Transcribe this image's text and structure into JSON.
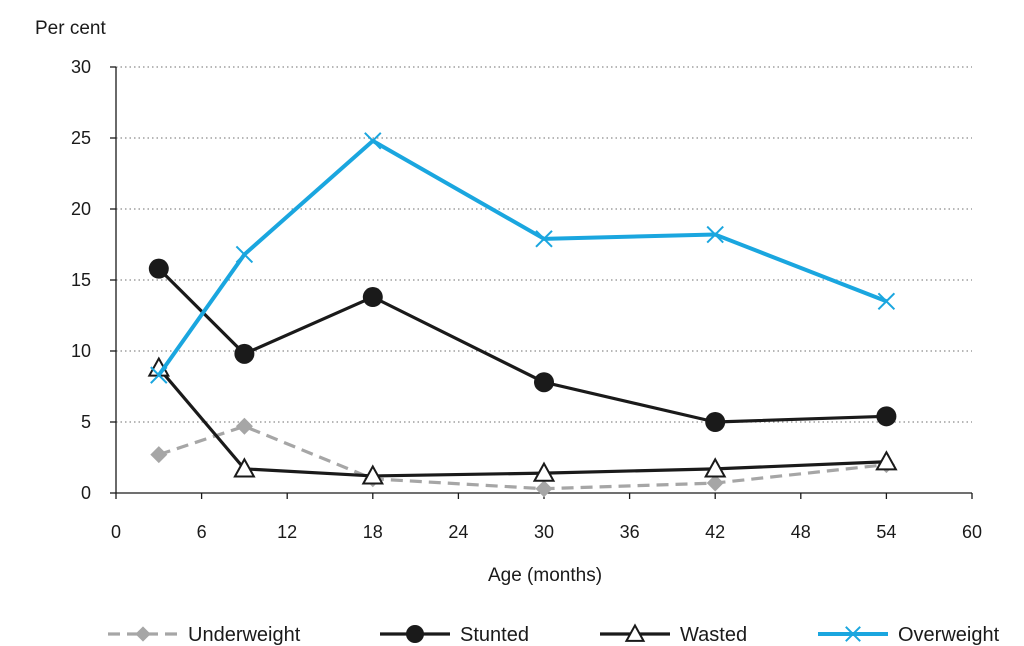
{
  "chart_data": {
    "type": "line",
    "title": "",
    "ylabel": "Per cent",
    "xlabel": "Age (months)",
    "xlim": [
      0,
      60
    ],
    "ylim": [
      0,
      30
    ],
    "xticks": [
      0,
      6,
      12,
      18,
      24,
      30,
      36,
      42,
      48,
      54,
      60
    ],
    "yticks": [
      0,
      5,
      10,
      15,
      20,
      25,
      30
    ],
    "x": [
      3,
      9,
      18,
      30,
      42,
      54
    ],
    "grid": "horizontal dotted",
    "legend_position": "bottom",
    "series": [
      {
        "name": "Underweight",
        "values": [
          2.7,
          4.7,
          1.0,
          0.3,
          0.7,
          2.0
        ],
        "color": "#a6a6a6",
        "marker": "diamond",
        "line": "dashed"
      },
      {
        "name": "Stunted",
        "values": [
          15.8,
          9.8,
          13.8,
          7.8,
          5.0,
          5.4
        ],
        "color": "#1a1a1a",
        "marker": "circle",
        "line": "solid"
      },
      {
        "name": "Wasted",
        "values": [
          8.8,
          1.7,
          1.2,
          1.4,
          1.7,
          2.2
        ],
        "color": "#1a1a1a",
        "marker": "triangle",
        "line": "solid"
      },
      {
        "name": "Overweight",
        "values": [
          8.3,
          16.8,
          24.8,
          17.9,
          18.2,
          13.5
        ],
        "color": "#1aa6df",
        "marker": "x",
        "line": "solid"
      }
    ]
  }
}
